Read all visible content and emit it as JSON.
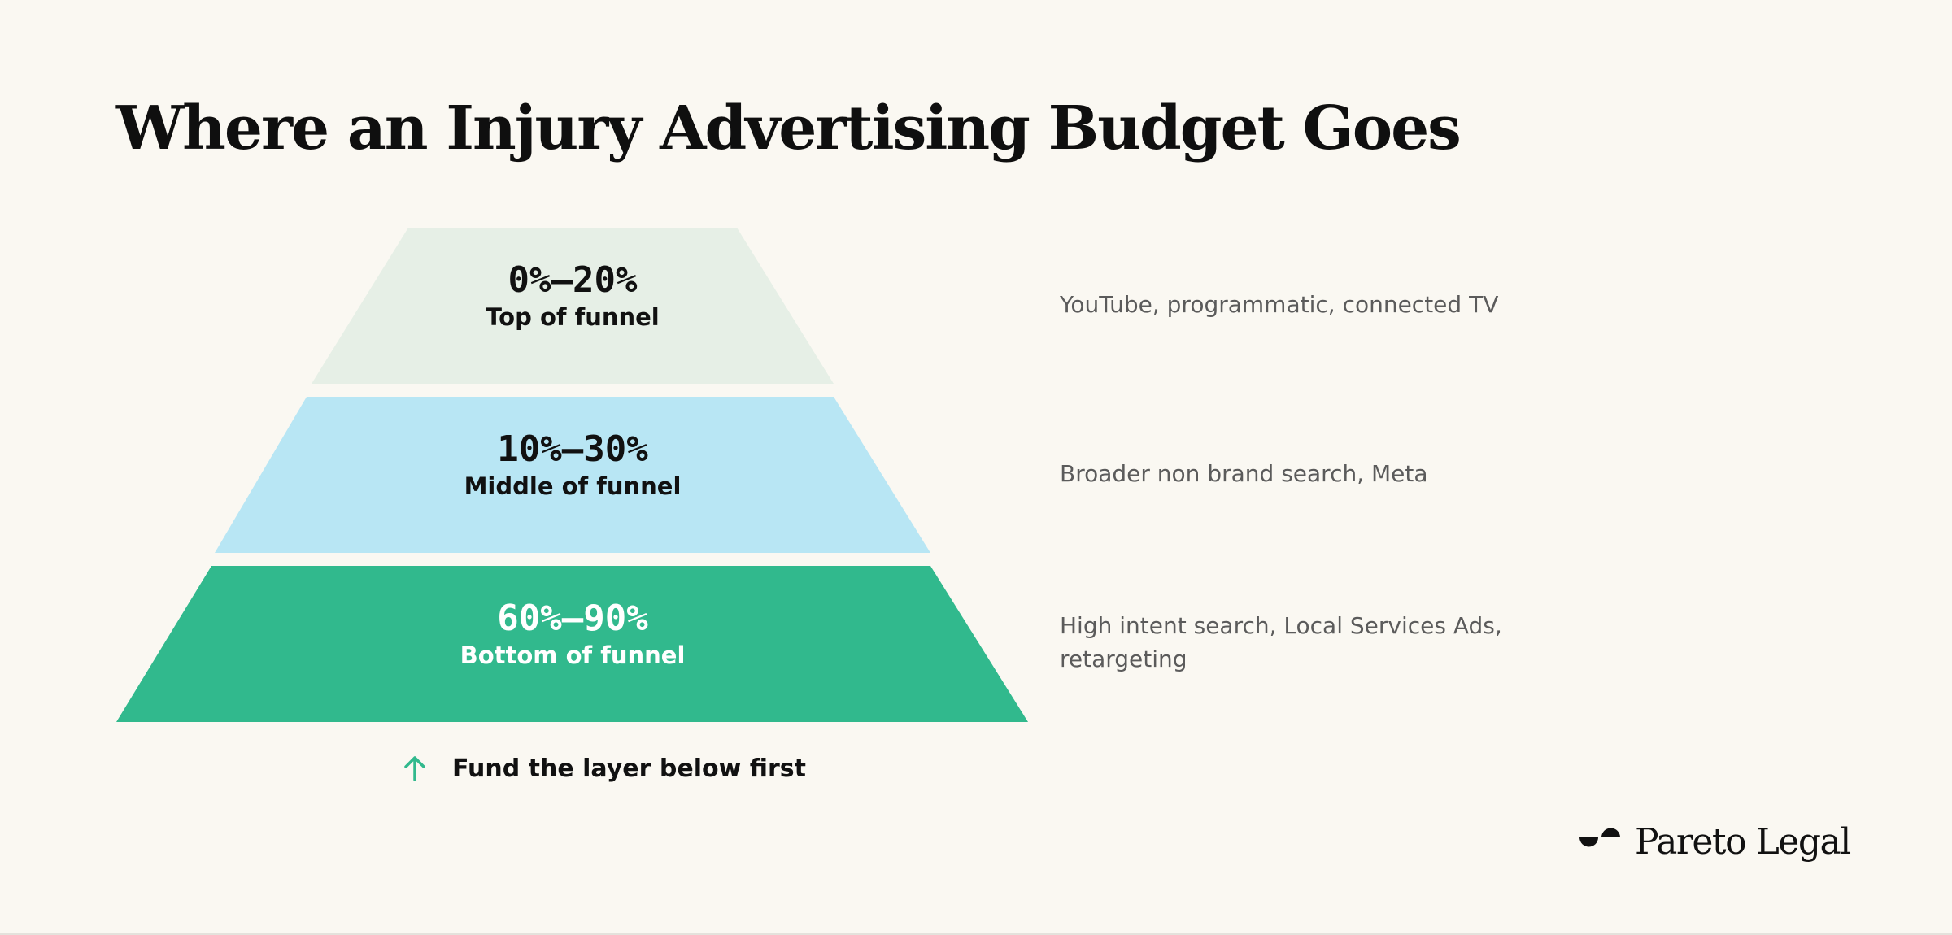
{
  "title": "Where an Injury Advertising Budget Goes",
  "layers": [
    {
      "range": "0%–20%",
      "label": "Top of funnel",
      "channels": "YouTube, programmatic, connected TV",
      "fill_color": "#e6efe6",
      "text_color": "#111111"
    },
    {
      "range": "10%–30%",
      "label": "Middle of funnel",
      "channels": "Broader non brand search, Meta",
      "fill_color": "#b8e6f4",
      "text_color": "#111111"
    },
    {
      "range": "60%–90%",
      "label": "Bottom of funnel",
      "channels": "High intent search, Local Services Ads, retargeting",
      "fill_color": "#31b98d",
      "text_color": "#ffffff"
    }
  ],
  "note": {
    "icon": "arrow-up-icon",
    "text": "Fund the layer below first",
    "icon_color": "#31b98d"
  },
  "brand": {
    "icon": "pareto-legal-logo-mark",
    "name": "Pareto Legal"
  }
}
